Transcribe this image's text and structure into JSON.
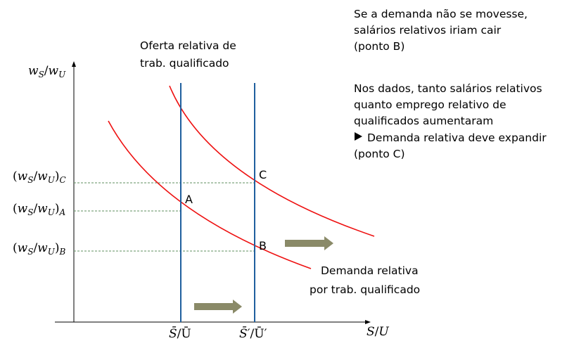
{
  "axes": {
    "y_label": "w_S/w_U",
    "x_label": "S/U"
  },
  "supply": {
    "title_line1": "Oferta relativa de",
    "title_line2": "trab. qualificado",
    "tick_1": "S̄/Ū",
    "tick_2": "S̄′/Ū′"
  },
  "demand": {
    "label_line1": "Demanda relativa",
    "label_line2": "por trab. qualificado"
  },
  "y_ticks": {
    "c": "(w_S/w_U)_C",
    "a": "(w_S/w_U)_A",
    "b": "(w_S/w_U)_B"
  },
  "points": {
    "a": "A",
    "b": "B",
    "c": "C"
  },
  "notes": {
    "block1": [
      "Se a demanda não se movesse,",
      "salários relativos iriam cair",
      "(ponto B)"
    ],
    "block2": [
      "Nos dados, tanto salários relativos",
      "quanto emprego relativo de",
      "qualificados aumentaram",
      "Demanda relativa deve expandir",
      "(ponto C)"
    ]
  },
  "colors": {
    "demand_curve": "#ee1111",
    "supply_line": "#1f5f9e",
    "arrow_fill": "#8a8a68",
    "guide_line": "#5f8f5f"
  }
}
